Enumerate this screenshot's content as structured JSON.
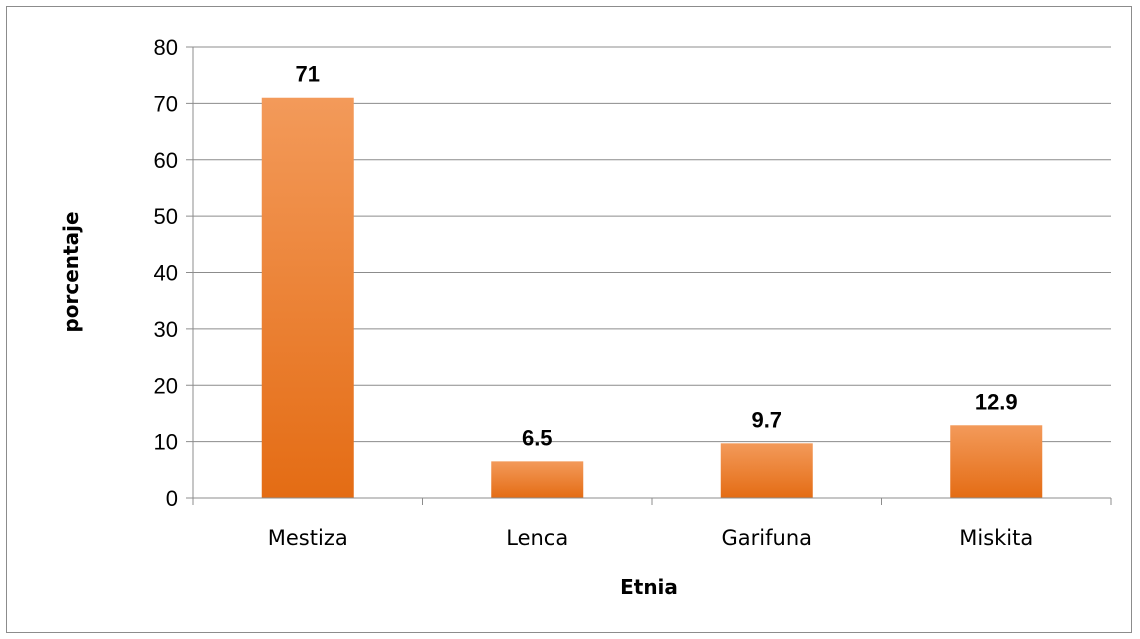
{
  "chart_data": {
    "type": "bar",
    "categories": [
      "Mestiza",
      "Lenca",
      "Garifuna",
      "Miskita"
    ],
    "values": [
      71,
      6.5,
      9.7,
      12.9
    ],
    "data_labels": [
      "71",
      "6.5",
      "9.7",
      "12.9"
    ],
    "title": "",
    "xlabel": "Etnia",
    "ylabel": "porcentaje",
    "ylim": [
      0,
      80
    ],
    "yticks": [
      0,
      10,
      20,
      30,
      40,
      50,
      60,
      70,
      80
    ],
    "grid": true,
    "legend": "none",
    "bar_color_light": "#f39a5a",
    "bar_color_dark": "#e46c14"
  }
}
